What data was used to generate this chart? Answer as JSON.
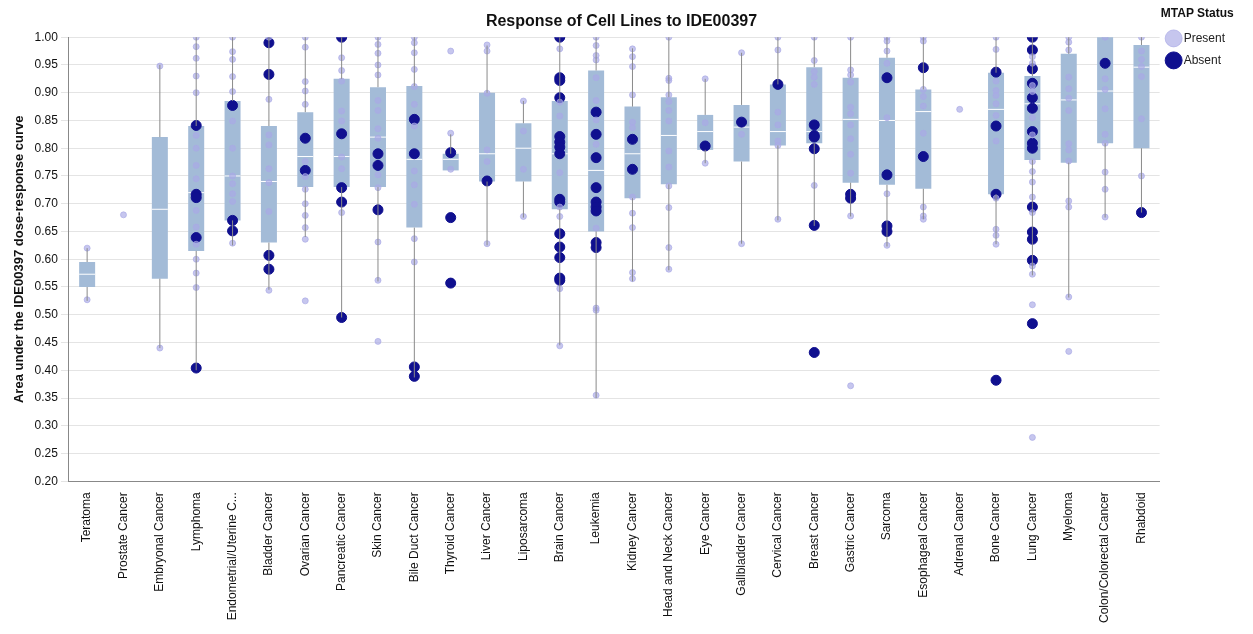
{
  "chart_data": {
    "type": "box",
    "title": "Response of Cell Lines to IDE00397",
    "ylabel": "Area under the IDE00397 dose-response curve",
    "legend_title": "MTAP Status",
    "legend": "top right",
    "grid": "y",
    "marker": "circle",
    "categories": [
      "Teratoma",
      "Prostate Cancer",
      "Embryonal Cancer",
      "Lymphoma",
      "Endometrial/Uterine C...",
      "Bladder Cancer",
      "Ovarian Cancer",
      "Pancreatic Cancer",
      "Skin Cancer",
      "Bile Duct Cancer",
      "Thyroid Cancer",
      "Liver Cancer",
      "Liposarcoma",
      "Brain Cancer",
      "Leukemia",
      "Kidney Cancer",
      "Head and Neck Cancer",
      "Eye Cancer",
      "Gallbladder Cancer",
      "Cervical Cancer",
      "Breast Cancer",
      "Gastric Cancer",
      "Sarcoma",
      "Esophageal Cancer",
      "Adrenal Cancer",
      "Bone Cancer",
      "Lung Cancer",
      "Myeloma",
      "Colon/Colorectal Cancer",
      "Rhabdoid"
    ],
    "ylim": [
      0.2,
      1.0
    ],
    "yticks": [
      {
        "value": 0.2,
        "label": "0.20"
      },
      {
        "value": 0.25,
        "label": "0.25"
      },
      {
        "value": 0.3,
        "label": "0.30"
      },
      {
        "value": 0.35,
        "label": "0.35"
      },
      {
        "value": 0.4,
        "label": "0.40"
      },
      {
        "value": 0.45,
        "label": "0.45"
      },
      {
        "value": 0.5,
        "label": "0.50"
      },
      {
        "value": 0.55,
        "label": "0.55"
      },
      {
        "value": 0.6,
        "label": "0.60"
      },
      {
        "value": 0.65,
        "label": "0.65"
      },
      {
        "value": 0.7,
        "label": "0.70"
      },
      {
        "value": 0.75,
        "label": "0.75"
      },
      {
        "value": 0.8,
        "label": "0.80"
      },
      {
        "value": 0.85,
        "label": "0.85"
      },
      {
        "value": 0.9,
        "label": "0.90"
      },
      {
        "value": 0.95,
        "label": "0.95"
      },
      {
        "value": 1.0,
        "label": "1.00"
      }
    ],
    "boxes": [
      {
        "low": 0.525,
        "q1": 0.55,
        "median": 0.573,
        "q3": 0.595,
        "high": 0.62
      },
      null,
      {
        "low": 0.44,
        "q1": 0.565,
        "median": 0.69,
        "q3": 0.82,
        "high": 0.95
      },
      {
        "low": 0.4,
        "q1": 0.615,
        "median": 0.72,
        "q3": 0.84,
        "high": 1.0
      },
      {
        "low": 0.625,
        "q1": 0.67,
        "median": 0.75,
        "q3": 0.885,
        "high": 1.0
      },
      {
        "low": 0.545,
        "q1": 0.63,
        "median": 0.74,
        "q3": 0.84,
        "high": 1.0
      },
      {
        "low": 0.64,
        "q1": 0.73,
        "median": 0.785,
        "q3": 0.865,
        "high": 1.0
      },
      {
        "low": 0.495,
        "q1": 0.73,
        "median": 0.785,
        "q3": 0.925,
        "high": 1.0
      },
      {
        "low": 0.56,
        "q1": 0.73,
        "median": 0.82,
        "q3": 0.91,
        "high": 1.0
      },
      {
        "low": 0.387,
        "q1": 0.657,
        "median": 0.78,
        "q3": 0.912,
        "high": 1.0
      },
      {
        "low": 0.76,
        "q1": 0.76,
        "median": 0.78,
        "q3": 0.79,
        "high": 0.825
      },
      {
        "low": 0.625,
        "q1": 0.74,
        "median": 0.79,
        "q3": 0.9,
        "high": 0.985
      },
      {
        "low": 0.675,
        "q1": 0.74,
        "median": 0.8,
        "q3": 0.845,
        "high": 0.885
      },
      {
        "low": 0.445,
        "q1": 0.69,
        "median": 0.79,
        "q3": 0.885,
        "high": 1.0
      },
      {
        "low": 0.35,
        "q1": 0.65,
        "median": 0.76,
        "q3": 0.94,
        "high": 1.0
      },
      {
        "low": 0.56,
        "q1": 0.71,
        "median": 0.79,
        "q3": 0.875,
        "high": 0.98
      },
      {
        "low": 0.58,
        "q1": 0.735,
        "median": 0.823,
        "q3": 0.892,
        "high": 1.0
      },
      {
        "low": 0.773,
        "q1": 0.797,
        "median": 0.83,
        "q3": 0.86,
        "high": 0.925
      },
      {
        "low": 0.628,
        "q1": 0.776,
        "median": 0.838,
        "q3": 0.878,
        "high": 0.972
      },
      {
        "low": 0.67,
        "q1": 0.805,
        "median": 0.83,
        "q3": 0.915,
        "high": 1.0
      },
      {
        "low": 0.66,
        "q1": 0.809,
        "median": 0.83,
        "q3": 0.946,
        "high": 1.0
      },
      {
        "low": 0.677,
        "q1": 0.738,
        "median": 0.852,
        "q3": 0.927,
        "high": 1.0
      },
      {
        "low": 0.623,
        "q1": 0.734,
        "median": 0.85,
        "q3": 0.963,
        "high": 1.0
      },
      {
        "low": 0.672,
        "q1": 0.727,
        "median": 0.866,
        "q3": 0.906,
        "high": 1.0
      },
      null,
      {
        "low": 0.627,
        "q1": 0.717,
        "median": 0.87,
        "q3": 0.936,
        "high": 1.0
      },
      {
        "low": 0.571,
        "q1": 0.779,
        "median": 0.88,
        "q3": 0.93,
        "high": 1.0
      },
      {
        "low": 0.531,
        "q1": 0.774,
        "median": 0.887,
        "q3": 0.97,
        "high": 1.0
      },
      {
        "low": 0.675,
        "q1": 0.809,
        "median": 0.903,
        "q3": 1.0,
        "high": 1.0
      },
      {
        "low": 0.684,
        "q1": 0.8,
        "median": 0.946,
        "q3": 0.986,
        "high": 1.0
      }
    ],
    "series": [
      {
        "name": "Present",
        "type": "scatter",
        "color": "#a9a9e6",
        "x": [
          "Teratoma",
          "Teratoma",
          "Prostate Cancer",
          "Embryonal Cancer",
          "Embryonal Cancer",
          "Lymphoma",
          "Lymphoma",
          "Lymphoma",
          "Lymphoma",
          "Lymphoma",
          "Lymphoma",
          "Lymphoma",
          "Lymphoma",
          "Lymphoma",
          "Lymphoma",
          "Lymphoma",
          "Lymphoma",
          "Lymphoma",
          "Lymphoma",
          "Lymphoma",
          "Endometrial/Uterine C...",
          "Endometrial/Uterine C...",
          "Endometrial/Uterine C...",
          "Endometrial/Uterine C...",
          "Endometrial/Uterine C...",
          "Endometrial/Uterine C...",
          "Endometrial/Uterine C...",
          "Endometrial/Uterine C...",
          "Endometrial/Uterine C...",
          "Endometrial/Uterine C...",
          "Endometrial/Uterine C...",
          "Endometrial/Uterine C...",
          "Bladder Cancer",
          "Bladder Cancer",
          "Bladder Cancer",
          "Bladder Cancer",
          "Bladder Cancer",
          "Bladder Cancer",
          "Bladder Cancer",
          "Bladder Cancer",
          "Ovarian Cancer",
          "Ovarian Cancer",
          "Ovarian Cancer",
          "Ovarian Cancer",
          "Ovarian Cancer",
          "Ovarian Cancer",
          "Ovarian Cancer",
          "Ovarian Cancer",
          "Ovarian Cancer",
          "Ovarian Cancer",
          "Ovarian Cancer",
          "Ovarian Cancer",
          "Ovarian Cancer",
          "Pancreatic Cancer",
          "Pancreatic Cancer",
          "Pancreatic Cancer",
          "Pancreatic Cancer",
          "Pancreatic Cancer",
          "Pancreatic Cancer",
          "Pancreatic Cancer",
          "Pancreatic Cancer",
          "Skin Cancer",
          "Skin Cancer",
          "Skin Cancer",
          "Skin Cancer",
          "Skin Cancer",
          "Skin Cancer",
          "Skin Cancer",
          "Skin Cancer",
          "Skin Cancer",
          "Skin Cancer",
          "Skin Cancer",
          "Skin Cancer",
          "Skin Cancer",
          "Skin Cancer",
          "Bile Duct Cancer",
          "Bile Duct Cancer",
          "Bile Duct Cancer",
          "Bile Duct Cancer",
          "Bile Duct Cancer",
          "Bile Duct Cancer",
          "Bile Duct Cancer",
          "Bile Duct Cancer",
          "Bile Duct Cancer",
          "Bile Duct Cancer",
          "Bile Duct Cancer",
          "Bile Duct Cancer",
          "Thyroid Cancer",
          "Thyroid Cancer",
          "Thyroid Cancer",
          "Liver Cancer",
          "Liver Cancer",
          "Liver Cancer",
          "Liver Cancer",
          "Liver Cancer",
          "Liver Cancer",
          "Liposarcoma",
          "Liposarcoma",
          "Liposarcoma",
          "Liposarcoma",
          "Brain Cancer",
          "Brain Cancer",
          "Brain Cancer",
          "Brain Cancer",
          "Brain Cancer",
          "Brain Cancer",
          "Brain Cancer",
          "Brain Cancer",
          "Leukemia",
          "Leukemia",
          "Leukemia",
          "Leukemia",
          "Leukemia",
          "Leukemia",
          "Leukemia",
          "Leukemia",
          "Leukemia",
          "Leukemia",
          "Leukemia",
          "Leukemia",
          "Kidney Cancer",
          "Kidney Cancer",
          "Kidney Cancer",
          "Kidney Cancer",
          "Kidney Cancer",
          "Kidney Cancer",
          "Kidney Cancer",
          "Kidney Cancer",
          "Kidney Cancer",
          "Kidney Cancer",
          "Kidney Cancer",
          "Head and Neck Cancer",
          "Head and Neck Cancer",
          "Head and Neck Cancer",
          "Head and Neck Cancer",
          "Head and Neck Cancer",
          "Head and Neck Cancer",
          "Head and Neck Cancer",
          "Head and Neck Cancer",
          "Head and Neck Cancer",
          "Head and Neck Cancer",
          "Head and Neck Cancer",
          "Head and Neck Cancer",
          "Head and Neck Cancer",
          "Eye Cancer",
          "Eye Cancer",
          "Eye Cancer",
          "Gallbladder Cancer",
          "Gallbladder Cancer",
          "Gallbladder Cancer",
          "Cervical Cancer",
          "Cervical Cancer",
          "Cervical Cancer",
          "Cervical Cancer",
          "Cervical Cancer",
          "Cervical Cancer",
          "Cervical Cancer",
          "Breast Cancer",
          "Breast Cancer",
          "Breast Cancer",
          "Breast Cancer",
          "Breast Cancer",
          "Breast Cancer",
          "Gastric Cancer",
          "Gastric Cancer",
          "Gastric Cancer",
          "Gastric Cancer",
          "Gastric Cancer",
          "Gastric Cancer",
          "Gastric Cancer",
          "Gastric Cancer",
          "Gastric Cancer",
          "Gastric Cancer",
          "Gastric Cancer",
          "Gastric Cancer",
          "Sarcoma",
          "Sarcoma",
          "Sarcoma",
          "Sarcoma",
          "Sarcoma",
          "Sarcoma",
          "Sarcoma",
          "Esophageal Cancer",
          "Esophageal Cancer",
          "Esophageal Cancer",
          "Esophageal Cancer",
          "Esophageal Cancer",
          "Esophageal Cancer",
          "Esophageal Cancer",
          "Esophageal Cancer",
          "Esophageal Cancer",
          "Adrenal Cancer",
          "Bone Cancer",
          "Bone Cancer",
          "Bone Cancer",
          "Bone Cancer",
          "Bone Cancer",
          "Bone Cancer",
          "Bone Cancer",
          "Bone Cancer",
          "Bone Cancer",
          "Bone Cancer",
          "Bone Cancer",
          "Bone Cancer",
          "Lung Cancer",
          "Lung Cancer",
          "Lung Cancer",
          "Lung Cancer",
          "Lung Cancer",
          "Lung Cancer",
          "Lung Cancer",
          "Lung Cancer",
          "Lung Cancer",
          "Lung Cancer",
          "Lung Cancer",
          "Lung Cancer",
          "Lung Cancer",
          "Lung Cancer",
          "Lung Cancer",
          "Myeloma",
          "Myeloma",
          "Myeloma",
          "Myeloma",
          "Myeloma",
          "Myeloma",
          "Myeloma",
          "Myeloma",
          "Myeloma",
          "Myeloma",
          "Myeloma",
          "Myeloma",
          "Myeloma",
          "Myeloma",
          "Colon/Colorectal Cancer",
          "Colon/Colorectal Cancer",
          "Colon/Colorectal Cancer",
          "Colon/Colorectal Cancer",
          "Colon/Colorectal Cancer",
          "Colon/Colorectal Cancer",
          "Colon/Colorectal Cancer",
          "Colon/Colorectal Cancer",
          "Colon/Colorectal Cancer",
          "Rhabdoid",
          "Rhabdoid",
          "Rhabdoid",
          "Rhabdoid",
          "Rhabdoid",
          "Rhabdoid",
          "Rhabdoid"
        ],
        "values": [
          0.62,
          0.527,
          0.68,
          0.948,
          0.44,
          1.0,
          0.983,
          0.962,
          0.93,
          0.9,
          0.823,
          0.8,
          0.769,
          0.745,
          0.688,
          0.658,
          0.627,
          0.6,
          0.575,
          0.549,
          1.0,
          0.974,
          0.96,
          0.929,
          0.902,
          0.849,
          0.8,
          0.75,
          0.736,
          0.718,
          0.704,
          0.629,
          1.0,
          0.888,
          0.824,
          0.806,
          0.763,
          0.738,
          0.686,
          0.544,
          1.0,
          0.982,
          0.92,
          0.903,
          0.879,
          0.776,
          0.749,
          0.726,
          0.7,
          0.679,
          0.657,
          0.636,
          0.525,
          0.963,
          0.94,
          0.921,
          0.867,
          0.849,
          0.784,
          0.763,
          0.684,
          1.0,
          0.987,
          0.971,
          0.95,
          0.932,
          0.886,
          0.868,
          0.835,
          0.818,
          0.752,
          0.729,
          0.631,
          0.562,
          0.452,
          1.0,
          0.99,
          0.972,
          0.942,
          0.911,
          0.879,
          0.84,
          0.759,
          0.734,
          0.699,
          0.637,
          0.595,
          0.975,
          0.827,
          0.762,
          0.986,
          0.975,
          0.899,
          0.797,
          0.776,
          0.628,
          0.885,
          0.831,
          0.762,
          0.677,
          0.979,
          0.883,
          0.858,
          0.756,
          0.694,
          0.677,
          0.547,
          0.444,
          1.0,
          0.985,
          0.967,
          0.959,
          0.927,
          0.886,
          0.851,
          0.807,
          0.656,
          0.512,
          0.508,
          0.355,
          0.979,
          0.965,
          0.947,
          0.896,
          0.847,
          0.837,
          0.712,
          0.683,
          0.657,
          0.576,
          0.565,
          1.0,
          0.926,
          0.922,
          0.896,
          0.884,
          0.868,
          0.849,
          0.795,
          0.766,
          0.732,
          0.693,
          0.621,
          0.582,
          0.925,
          0.846,
          0.773,
          0.972,
          0.825,
          0.628,
          1.0,
          0.977,
          0.865,
          0.842,
          0.813,
          0.805,
          0.672,
          1.0,
          0.958,
          0.938,
          0.928,
          0.915,
          0.733,
          1.0,
          0.941,
          0.932,
          0.919,
          0.874,
          0.862,
          0.842,
          0.817,
          0.789,
          0.755,
          0.678,
          0.372,
          1.0,
          0.993,
          0.975,
          0.953,
          0.855,
          0.718,
          0.625,
          1.0,
          0.993,
          0.906,
          0.893,
          0.876,
          0.827,
          0.694,
          0.678,
          0.672,
          0.87,
          1.0,
          0.978,
          0.921,
          0.904,
          0.895,
          0.88,
          0.859,
          0.813,
          0.71,
          0.654,
          0.643,
          0.627,
          0.965,
          0.953,
          0.913,
          0.902,
          0.855,
          0.824,
          0.776,
          0.758,
          0.739,
          0.712,
          0.684,
          0.588,
          0.573,
          0.518,
          0.279,
          1.0,
          0.991,
          0.977,
          0.928,
          0.907,
          0.89,
          0.868,
          0.808,
          0.797,
          0.777,
          0.705,
          0.694,
          0.532,
          0.434,
          1.0,
          0.925,
          0.906,
          0.871,
          0.825,
          0.809,
          0.757,
          0.726,
          0.676,
          1.0,
          0.975,
          0.96,
          0.947,
          0.929,
          0.853,
          0.75
        ]
      },
      {
        "name": "Absent",
        "type": "scatter",
        "color": "#10108f",
        "x": [
          "Lymphoma",
          "Lymphoma",
          "Lymphoma",
          "Lymphoma",
          "Lymphoma",
          "Endometrial/Uterine C...",
          "Endometrial/Uterine C...",
          "Endometrial/Uterine C...",
          "Bladder Cancer",
          "Bladder Cancer",
          "Bladder Cancer",
          "Bladder Cancer",
          "Ovarian Cancer",
          "Ovarian Cancer",
          "Pancreatic Cancer",
          "Pancreatic Cancer",
          "Pancreatic Cancer",
          "Pancreatic Cancer",
          "Pancreatic Cancer",
          "Skin Cancer",
          "Skin Cancer",
          "Skin Cancer",
          "Bile Duct Cancer",
          "Bile Duct Cancer",
          "Bile Duct Cancer",
          "Bile Duct Cancer",
          "Thyroid Cancer",
          "Thyroid Cancer",
          "Thyroid Cancer",
          "Liver Cancer",
          "Brain Cancer",
          "Brain Cancer",
          "Brain Cancer",
          "Brain Cancer",
          "Brain Cancer",
          "Brain Cancer",
          "Brain Cancer",
          "Brain Cancer",
          "Brain Cancer",
          "Brain Cancer",
          "Brain Cancer",
          "Brain Cancer",
          "Brain Cancer",
          "Brain Cancer",
          "Brain Cancer",
          "Leukemia",
          "Leukemia",
          "Leukemia",
          "Leukemia",
          "Leukemia",
          "Leukemia",
          "Leukemia",
          "Leukemia",
          "Leukemia",
          "Kidney Cancer",
          "Kidney Cancer",
          "Eye Cancer",
          "Gallbladder Cancer",
          "Cervical Cancer",
          "Breast Cancer",
          "Breast Cancer",
          "Breast Cancer",
          "Breast Cancer",
          "Breast Cancer",
          "Breast Cancer",
          "Gastric Cancer",
          "Gastric Cancer",
          "Sarcoma",
          "Sarcoma",
          "Sarcoma",
          "Sarcoma",
          "Esophageal Cancer",
          "Esophageal Cancer",
          "Bone Cancer",
          "Bone Cancer",
          "Bone Cancer",
          "Bone Cancer",
          "Lung Cancer",
          "Lung Cancer",
          "Lung Cancer",
          "Lung Cancer",
          "Lung Cancer",
          "Lung Cancer",
          "Lung Cancer",
          "Lung Cancer",
          "Lung Cancer",
          "Lung Cancer",
          "Lung Cancer",
          "Lung Cancer",
          "Lung Cancer",
          "Lung Cancer",
          "Colon/Colorectal Cancer",
          "Rhabdoid"
        ],
        "values": [
          0.841,
          0.717,
          0.711,
          0.639,
          0.404,
          0.877,
          0.67,
          0.651,
          0.99,
          0.933,
          0.607,
          0.582,
          0.818,
          0.76,
          1.0,
          0.826,
          0.729,
          0.703,
          0.495,
          0.79,
          0.769,
          0.689,
          0.852,
          0.79,
          0.406,
          0.389,
          0.792,
          0.675,
          0.557,
          0.741,
          1.0,
          0.927,
          0.922,
          0.891,
          0.821,
          0.811,
          0.802,
          0.79,
          0.708,
          0.703,
          0.646,
          0.622,
          0.603,
          0.566,
          0.562,
          0.865,
          0.825,
          0.783,
          0.729,
          0.703,
          0.694,
          0.687,
          0.63,
          0.621,
          0.816,
          0.762,
          0.804,
          0.847,
          0.915,
          0.842,
          0.823,
          0.82,
          0.799,
          0.661,
          0.432,
          0.717,
          0.71,
          0.927,
          0.752,
          0.66,
          0.65,
          0.945,
          0.785,
          0.937,
          0.84,
          0.717,
          0.382,
          1.0,
          0.977,
          0.943,
          0.917,
          0.891,
          0.872,
          0.83,
          0.809,
          0.8,
          0.694,
          0.649,
          0.636,
          0.598,
          0.484,
          0.953,
          0.684
        ]
      }
    ]
  }
}
